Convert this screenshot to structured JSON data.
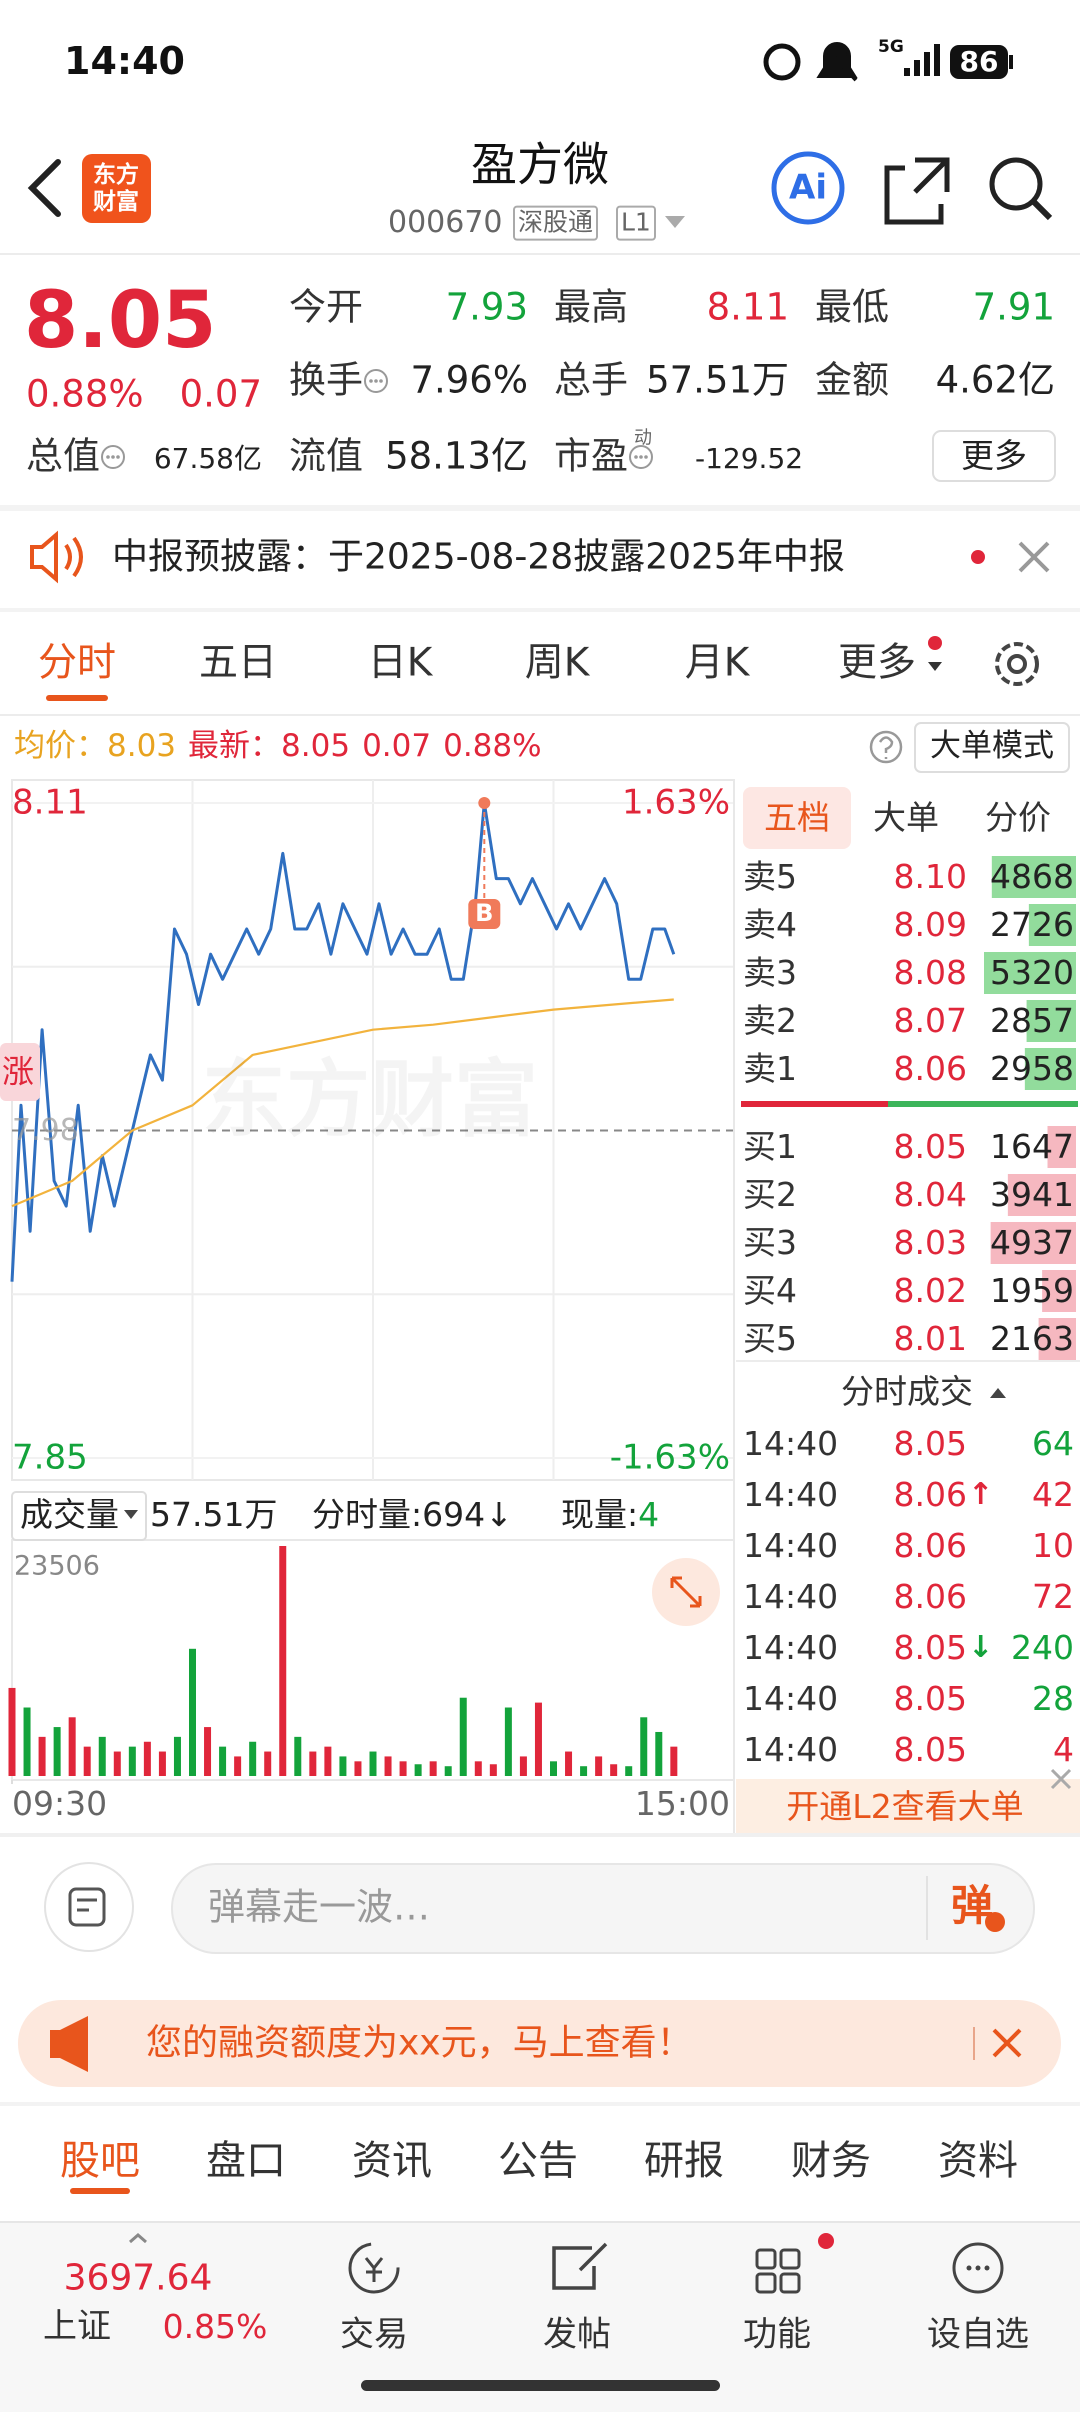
{
  "status_bar": {
    "time": "14:40",
    "network": "5G",
    "battery": "86"
  },
  "header": {
    "logo": [
      "东方",
      "财富"
    ],
    "title": "盈方微",
    "code": "000670",
    "badges": [
      "深股通",
      "L1"
    ],
    "ai": "Ai"
  },
  "quote": {
    "price": "8.05",
    "change_pct": "0.88%",
    "change": "0.07",
    "color": "#e0263a",
    "rows": [
      [
        {
          "label": "今开",
          "value": "7.93",
          "color": "#13a33b"
        },
        {
          "label": "最高",
          "value": "8.11",
          "color": "#e0263a"
        },
        {
          "label": "最低",
          "value": "7.91",
          "color": "#13a33b"
        }
      ],
      [
        {
          "label": "换手",
          "value": "7.96%",
          "color": "#222222"
        },
        {
          "label": "总手",
          "value": "57.51万",
          "color": "#222222"
        },
        {
          "label": "金额",
          "value": "4.62亿",
          "color": "#222222"
        }
      ],
      [
        {
          "label": "总值",
          "value": "67.58亿",
          "color": "#222222"
        },
        {
          "label": "流值",
          "value": "58.13亿",
          "color": "#222222"
        },
        {
          "label": "市盈",
          "sup": "动",
          "value": "-129.52",
          "color": "#222222"
        }
      ]
    ],
    "more": "更多"
  },
  "notice": {
    "text": "中报预披露：于2025-08-28披露2025年中报"
  },
  "tabs": {
    "items": [
      "分时",
      "五日",
      "日K",
      "周K",
      "月K",
      "更多"
    ],
    "active": 0
  },
  "info_line": {
    "avg_label": "均价：",
    "avg": "8.03",
    "last_label": "最新：",
    "last": "8.05",
    "change": "0.07",
    "change_pct": "0.88%",
    "mode_button": "大单模式"
  },
  "watermark": "东方财富",
  "side_tag": "涨",
  "chart_data": [
    {
      "type": "line",
      "xlim": [
        0,
        240
      ],
      "ylim": [
        7.85,
        8.11
      ],
      "yticks": [
        8.11,
        7.98,
        7.85
      ],
      "tick_colors": [
        "#e0263a",
        "#999999",
        "#13a33b"
      ],
      "y2lim": [
        -1.63,
        1.63
      ],
      "y2ticks": [
        {
          "value": 1.63,
          "label": "1.63%"
        },
        {
          "value": -1.63,
          "label": "-1.63%"
        }
      ],
      "y2tick_colors": [
        "#e0263a",
        "#13a33b"
      ],
      "xgrid": [
        60,
        120,
        180
      ],
      "ygrid": [
        8.045,
        7.915
      ],
      "series": [
        {
          "color": "#2f6fc0",
          "x": [
            0,
            3,
            6,
            10,
            14,
            18,
            22,
            26,
            30,
            34,
            38,
            42,
            46,
            50,
            54,
            58,
            62,
            66,
            70,
            74,
            78,
            82,
            86,
            90,
            94,
            98,
            102,
            106,
            110,
            114,
            118,
            122,
            126,
            130,
            134,
            138,
            142,
            146,
            150,
            154,
            157,
            161,
            165,
            169,
            173,
            177,
            181,
            185,
            189,
            193,
            197,
            201,
            205,
            209,
            213,
            217,
            220
          ],
          "values": [
            7.92,
            7.99,
            7.94,
            8.02,
            7.96,
            7.95,
            7.99,
            7.94,
            7.97,
            7.95,
            7.97,
            7.99,
            8.01,
            8.0,
            8.06,
            8.05,
            8.03,
            8.05,
            8.04,
            8.05,
            8.06,
            8.05,
            8.06,
            8.09,
            8.06,
            8.06,
            8.07,
            8.05,
            8.07,
            8.06,
            8.05,
            8.07,
            8.05,
            8.06,
            8.05,
            8.05,
            8.06,
            8.04,
            8.04,
            8.07,
            8.11,
            8.08,
            8.08,
            8.07,
            8.08,
            8.07,
            8.06,
            8.07,
            8.06,
            8.07,
            8.08,
            8.07,
            8.04,
            8.04,
            8.06,
            8.06,
            8.05
          ]
        },
        {
          "color": "#f2b33d",
          "x": [
            0,
            20,
            40,
            60,
            80,
            100,
            120,
            140,
            160,
            180,
            200,
            220
          ],
          "values": [
            7.95,
            7.96,
            7.98,
            7.99,
            8.01,
            8.015,
            8.02,
            8.022,
            8.025,
            8.028,
            8.03,
            8.032
          ]
        }
      ],
      "marker": {
        "x": 157,
        "y": 8.11,
        "label": "B",
        "color": "#f07a5a"
      }
    },
    {
      "type": "bar",
      "xlim": [
        0,
        240
      ],
      "xticks": [
        {
          "value": 0,
          "label": "09:30"
        },
        {
          "value": 240,
          "label": "15:00"
        }
      ],
      "ylim": [
        0,
        23506
      ],
      "yticks": [
        23506
      ],
      "up_color": "#e0263a",
      "down_color": "#13a33b",
      "x": [
        0,
        5,
        10,
        15,
        20,
        25,
        30,
        35,
        40,
        45,
        50,
        55,
        60,
        65,
        70,
        75,
        80,
        85,
        90,
        95,
        100,
        105,
        110,
        115,
        120,
        125,
        130,
        135,
        140,
        145,
        150,
        155,
        160,
        165,
        170,
        175,
        180,
        185,
        190,
        195,
        200,
        205,
        210,
        215,
        220
      ],
      "values": [
        9000,
        7000,
        4000,
        5000,
        6000,
        3000,
        4000,
        2500,
        3000,
        3500,
        2500,
        4000,
        13000,
        5000,
        3000,
        2000,
        3500,
        2500,
        23506,
        4000,
        2500,
        3000,
        2000,
        1500,
        2500,
        2000,
        1500,
        1200,
        1500,
        1000,
        8000,
        1500,
        1200,
        7000,
        2000,
        7500,
        1500,
        2500,
        1000,
        2000,
        1200,
        1000,
        6000,
        4500,
        3000
      ],
      "up": [
        true,
        false,
        true,
        false,
        true,
        true,
        false,
        true,
        false,
        true,
        true,
        false,
        false,
        true,
        false,
        true,
        false,
        true,
        true,
        false,
        true,
        true,
        false,
        true,
        false,
        true,
        true,
        false,
        true,
        false,
        false,
        true,
        true,
        false,
        true,
        true,
        false,
        true,
        false,
        true,
        true,
        false,
        false,
        false,
        true
      ]
    }
  ],
  "volume_header": {
    "label": "成交量",
    "total": "57.51万",
    "tick_volume": "分时量:694↓",
    "current_label": "现量:",
    "current": "4"
  },
  "order_book": {
    "tabs": [
      "五档",
      "大单",
      "分价"
    ],
    "active": 0,
    "price_color": "#e0263a",
    "ask_color": "#92dc9c",
    "bid_color": "#f6b8c0",
    "asks": [
      {
        "label": "卖5",
        "price": "8.10",
        "volume": 4868
      },
      {
        "label": "卖4",
        "price": "8.09",
        "volume": 2726
      },
      {
        "label": "卖3",
        "price": "8.08",
        "volume": 5320
      },
      {
        "label": "卖2",
        "price": "8.07",
        "volume": 2857
      },
      {
        "label": "卖1",
        "price": "8.06",
        "volume": 2958
      }
    ],
    "bids": [
      {
        "label": "买1",
        "price": "8.05",
        "volume": 1647
      },
      {
        "label": "买2",
        "price": "8.04",
        "volume": 3941
      },
      {
        "label": "买3",
        "price": "8.03",
        "volume": 4937
      },
      {
        "label": "买4",
        "price": "8.02",
        "volume": 1959
      },
      {
        "label": "买5",
        "price": "8.01",
        "volume": 2163
      }
    ]
  },
  "trades": {
    "title": "分时成交",
    "price_color": "#e0263a",
    "rows": [
      {
        "time": "14:40",
        "price": "8.05",
        "volume": "64",
        "color": "#13a33b"
      },
      {
        "time": "14:40",
        "price": "8.06",
        "arrow": "↑",
        "arrow_color": "#e0263a",
        "volume": "42",
        "color": "#e0263a"
      },
      {
        "time": "14:40",
        "price": "8.06",
        "volume": "10",
        "color": "#e0263a"
      },
      {
        "time": "14:40",
        "price": "8.06",
        "volume": "72",
        "color": "#e0263a"
      },
      {
        "time": "14:40",
        "price": "8.05",
        "arrow": "↓",
        "arrow_color": "#13a33b",
        "volume": "240",
        "color": "#13a33b"
      },
      {
        "time": "14:40",
        "price": "8.05",
        "volume": "28",
        "color": "#13a33b"
      },
      {
        "time": "14:40",
        "price": "8.05",
        "volume": "4",
        "color": "#e0263a"
      }
    ]
  },
  "l2_banner": "开通L2查看大单",
  "comment_bar": {
    "placeholder": "弹幕走一波…",
    "button": "弹"
  },
  "promo": "您的融资额度为xx元，马上查看！",
  "bottom_tabs": {
    "items": [
      "股吧",
      "盘口",
      "资讯",
      "公告",
      "研报",
      "财务",
      "资料"
    ],
    "active": 0
  },
  "bottom_nav": {
    "index": {
      "value": "3697.64",
      "name": "上证",
      "change": "0.85%"
    },
    "items": [
      "交易",
      "发帖",
      "功能",
      "设自选"
    ]
  }
}
